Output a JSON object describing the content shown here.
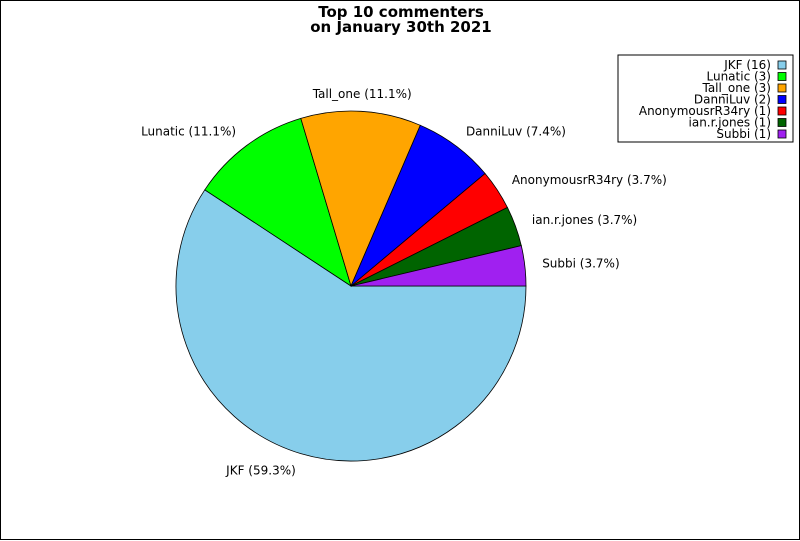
{
  "chart_data": {
    "type": "pie",
    "title": "Top 10 commenters\non January 30th 2021",
    "title_lines": [
      "Top 10 commenters",
      "on January 30th 2021"
    ],
    "start_angle_deg": 0,
    "direction": "clockwise",
    "legend_position": "top-right",
    "slices": [
      {
        "name": "JKF",
        "count": 16,
        "percent": 59.3,
        "color": "#87ceeb",
        "label": "JKF (59.3%)",
        "legend": "JKF (16)"
      },
      {
        "name": "Lunatic",
        "count": 3,
        "percent": 11.1,
        "color": "#00ff00",
        "label": "Lunatic (11.1%)",
        "legend": "Lunatic (3)"
      },
      {
        "name": "Tall_one",
        "count": 3,
        "percent": 11.1,
        "color": "#ffa500",
        "label": "Tall_one (11.1%)",
        "legend": "Tall_one (3)"
      },
      {
        "name": "DanniLuv",
        "count": 2,
        "percent": 7.4,
        "color": "#0000ff",
        "label": "DanniLuv (7.4%)",
        "legend": "DanniLuv (2)"
      },
      {
        "name": "AnonymousrR34ry",
        "count": 1,
        "percent": 3.7,
        "color": "#ff0000",
        "label": "AnonymousrR34ry (3.7%)",
        "legend": "AnonymousrR34ry (1)"
      },
      {
        "name": "ian.r.jones",
        "count": 1,
        "percent": 3.7,
        "color": "#006400",
        "label": "ian.r.jones (3.7%)",
        "legend": "ian.r.jones (1)"
      },
      {
        "name": "Subbi",
        "count": 1,
        "percent": 3.7,
        "color": "#a020f0",
        "label": "Subbi (3.7%)",
        "legend": "Subbi (1)"
      }
    ]
  }
}
